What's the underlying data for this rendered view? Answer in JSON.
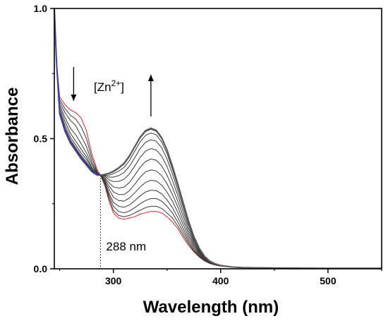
{
  "chart_data": {
    "type": "line",
    "xlabel": "Wavelength (nm)",
    "ylabel": "Absorbance",
    "xlim": [
      245,
      550
    ],
    "ylim": [
      0.0,
      1.0
    ],
    "x_ticks": [
      {
        "value": 300,
        "label": "300"
      },
      {
        "value": 400,
        "label": "400"
      },
      {
        "value": 500,
        "label": "500"
      }
    ],
    "y_ticks": [
      {
        "value": 0.0,
        "label": "0.0"
      },
      {
        "value": 0.5,
        "label": "0.5"
      },
      {
        "value": 1.0,
        "label": "1.0"
      }
    ],
    "grid": false,
    "legend": "none",
    "annotations": {
      "isosbestic_label": "288 nm",
      "isosbestic_x": 288,
      "titrant_label_prefix": "[Zn",
      "titrant_label_sup": "2+",
      "titrant_label_suffix": "]",
      "decrease_arrow_x": 263,
      "increase_arrow_x": 335
    },
    "series_colors": {
      "first": "#d42a2a",
      "middle": "#3a3a3a",
      "last": "#3b3bb8",
      "saturated": "#5a5a5a"
    },
    "x": [
      245,
      247,
      250,
      255,
      260,
      265,
      270,
      275,
      280,
      285,
      288,
      292,
      296,
      300,
      305,
      310,
      315,
      320,
      325,
      330,
      335,
      340,
      345,
      350,
      355,
      360,
      365,
      370,
      375,
      380,
      385,
      390,
      395,
      400,
      410,
      420,
      430,
      450,
      500,
      550
    ],
    "series": [
      {
        "values": [
          1.0,
          0.8,
          0.66,
          0.63,
          0.61,
          0.6,
          0.58,
          0.53,
          0.44,
          0.38,
          0.36,
          0.32,
          0.26,
          0.215,
          0.195,
          0.19,
          0.195,
          0.2,
          0.21,
          0.215,
          0.22,
          0.22,
          0.215,
          0.2,
          0.18,
          0.155,
          0.12,
          0.09,
          0.065,
          0.045,
          0.03,
          0.02,
          0.014,
          0.01,
          0.007,
          0.005,
          0.004,
          0.003,
          0.002,
          0.002
        ]
      },
      {
        "values": [
          1.0,
          0.8,
          0.65,
          0.615,
          0.59,
          0.575,
          0.545,
          0.5,
          0.425,
          0.372,
          0.36,
          0.325,
          0.27,
          0.225,
          0.205,
          0.2,
          0.205,
          0.215,
          0.225,
          0.235,
          0.24,
          0.24,
          0.232,
          0.215,
          0.195,
          0.165,
          0.13,
          0.097,
          0.068,
          0.047,
          0.031,
          0.021,
          0.015,
          0.011,
          0.007,
          0.005,
          0.004,
          0.003,
          0.002,
          0.002
        ]
      },
      {
        "values": [
          1.0,
          0.8,
          0.64,
          0.6,
          0.57,
          0.55,
          0.51,
          0.47,
          0.41,
          0.368,
          0.36,
          0.33,
          0.28,
          0.24,
          0.22,
          0.215,
          0.222,
          0.235,
          0.25,
          0.262,
          0.27,
          0.27,
          0.26,
          0.24,
          0.215,
          0.18,
          0.142,
          0.105,
          0.073,
          0.05,
          0.033,
          0.022,
          0.016,
          0.011,
          0.007,
          0.005,
          0.004,
          0.003,
          0.002,
          0.002
        ]
      },
      {
        "values": [
          1.0,
          0.8,
          0.63,
          0.58,
          0.54,
          0.515,
          0.48,
          0.445,
          0.4,
          0.365,
          0.36,
          0.335,
          0.29,
          0.255,
          0.24,
          0.236,
          0.245,
          0.262,
          0.28,
          0.295,
          0.302,
          0.3,
          0.288,
          0.265,
          0.235,
          0.197,
          0.155,
          0.114,
          0.08,
          0.054,
          0.035,
          0.023,
          0.016,
          0.011,
          0.007,
          0.005,
          0.004,
          0.003,
          0.002,
          0.002
        ]
      },
      {
        "values": [
          1.0,
          0.8,
          0.62,
          0.565,
          0.52,
          0.49,
          0.46,
          0.43,
          0.39,
          0.363,
          0.36,
          0.34,
          0.305,
          0.275,
          0.262,
          0.26,
          0.272,
          0.292,
          0.315,
          0.332,
          0.34,
          0.337,
          0.322,
          0.295,
          0.26,
          0.217,
          0.17,
          0.125,
          0.087,
          0.058,
          0.037,
          0.024,
          0.017,
          0.012,
          0.007,
          0.005,
          0.004,
          0.003,
          0.002,
          0.002
        ]
      },
      {
        "values": [
          1.0,
          0.8,
          0.61,
          0.55,
          0.505,
          0.475,
          0.445,
          0.42,
          0.385,
          0.362,
          0.36,
          0.345,
          0.318,
          0.295,
          0.285,
          0.285,
          0.3,
          0.325,
          0.352,
          0.372,
          0.38,
          0.376,
          0.358,
          0.327,
          0.286,
          0.238,
          0.186,
          0.136,
          0.094,
          0.062,
          0.039,
          0.025,
          0.017,
          0.012,
          0.007,
          0.005,
          0.004,
          0.003,
          0.002,
          0.002
        ]
      },
      {
        "values": [
          1.0,
          0.8,
          0.605,
          0.54,
          0.495,
          0.465,
          0.435,
          0.41,
          0.38,
          0.361,
          0.36,
          0.35,
          0.33,
          0.315,
          0.31,
          0.314,
          0.332,
          0.36,
          0.39,
          0.412,
          0.422,
          0.417,
          0.396,
          0.36,
          0.313,
          0.26,
          0.203,
          0.148,
          0.101,
          0.066,
          0.041,
          0.026,
          0.018,
          0.012,
          0.007,
          0.005,
          0.004,
          0.003,
          0.002,
          0.002
        ]
      },
      {
        "values": [
          1.0,
          0.8,
          0.6,
          0.535,
          0.49,
          0.46,
          0.43,
          0.405,
          0.378,
          0.361,
          0.36,
          0.355,
          0.342,
          0.335,
          0.336,
          0.344,
          0.365,
          0.395,
          0.428,
          0.452,
          0.462,
          0.456,
          0.433,
          0.393,
          0.34,
          0.282,
          0.22,
          0.16,
          0.108,
          0.07,
          0.043,
          0.027,
          0.018,
          0.012,
          0.007,
          0.005,
          0.004,
          0.003,
          0.002,
          0.002
        ]
      },
      {
        "values": [
          1.0,
          0.8,
          0.598,
          0.532,
          0.487,
          0.457,
          0.427,
          0.402,
          0.376,
          0.36,
          0.36,
          0.358,
          0.352,
          0.352,
          0.358,
          0.37,
          0.394,
          0.427,
          0.462,
          0.486,
          0.496,
          0.49,
          0.465,
          0.422,
          0.365,
          0.302,
          0.236,
          0.171,
          0.115,
          0.074,
          0.045,
          0.028,
          0.019,
          0.013,
          0.007,
          0.005,
          0.004,
          0.003,
          0.002,
          0.002
        ]
      },
      {
        "values": [
          1.0,
          0.8,
          0.597,
          0.53,
          0.485,
          0.455,
          0.425,
          0.4,
          0.375,
          0.36,
          0.36,
          0.36,
          0.36,
          0.365,
          0.375,
          0.39,
          0.416,
          0.452,
          0.488,
          0.512,
          0.522,
          0.515,
          0.488,
          0.443,
          0.383,
          0.316,
          0.247,
          0.179,
          0.12,
          0.077,
          0.047,
          0.029,
          0.019,
          0.013,
          0.007,
          0.005,
          0.004,
          0.003,
          0.002,
          0.002
        ]
      },
      {
        "values": [
          1.0,
          0.8,
          0.596,
          0.529,
          0.484,
          0.454,
          0.424,
          0.399,
          0.374,
          0.36,
          0.36,
          0.362,
          0.365,
          0.372,
          0.385,
          0.402,
          0.43,
          0.466,
          0.502,
          0.527,
          0.536,
          0.528,
          0.5,
          0.454,
          0.393,
          0.324,
          0.253,
          0.183,
          0.123,
          0.079,
          0.048,
          0.029,
          0.019,
          0.013,
          0.007,
          0.005,
          0.004,
          0.003,
          0.002,
          0.002
        ]
      },
      {
        "values": [
          1.0,
          0.8,
          0.595,
          0.528,
          0.483,
          0.453,
          0.423,
          0.398,
          0.373,
          0.36,
          0.36,
          0.363,
          0.367,
          0.375,
          0.388,
          0.406,
          0.434,
          0.47,
          0.506,
          0.531,
          0.54,
          0.532,
          0.504,
          0.457,
          0.396,
          0.326,
          0.255,
          0.184,
          0.124,
          0.079,
          0.048,
          0.029,
          0.019,
          0.013,
          0.007,
          0.005,
          0.004,
          0.003,
          0.002,
          0.002
        ]
      }
    ]
  }
}
